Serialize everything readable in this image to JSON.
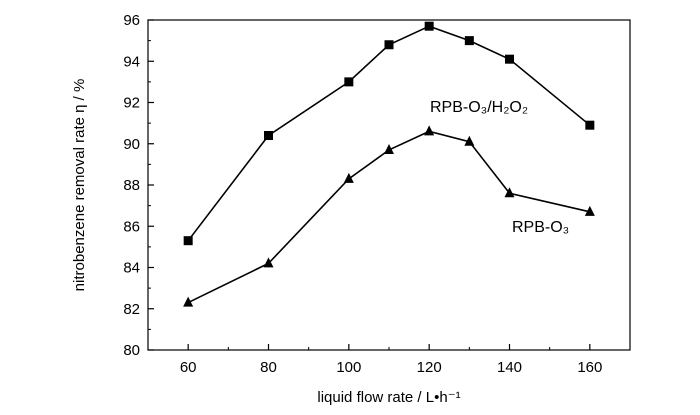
{
  "chart_data": {
    "type": "line",
    "xlabel": "liquid flow rate / L•h⁻¹",
    "ylabel": "nitrobenzene removal rate η / %",
    "xlim": [
      50,
      170
    ],
    "ylim": [
      80,
      96
    ],
    "x_ticks": [
      60,
      80,
      100,
      120,
      140,
      160
    ],
    "y_ticks": [
      80,
      82,
      84,
      86,
      88,
      90,
      92,
      94,
      96
    ],
    "grid": false,
    "legend": "none",
    "series": [
      {
        "name": "RPB-O₃/H₂O₂",
        "marker": "square",
        "color": "#000000",
        "x": [
          60,
          80,
          100,
          110,
          120,
          130,
          140,
          160
        ],
        "values": [
          85.3,
          90.4,
          93.0,
          94.8,
          95.7,
          95.0,
          94.1,
          90.9
        ]
      },
      {
        "name": "RPB-O₃",
        "marker": "triangle",
        "color": "#000000",
        "x": [
          60,
          80,
          100,
          110,
          120,
          130,
          140,
          160
        ],
        "values": [
          82.3,
          84.2,
          88.3,
          89.7,
          90.6,
          90.1,
          87.6,
          86.7
        ]
      }
    ]
  }
}
